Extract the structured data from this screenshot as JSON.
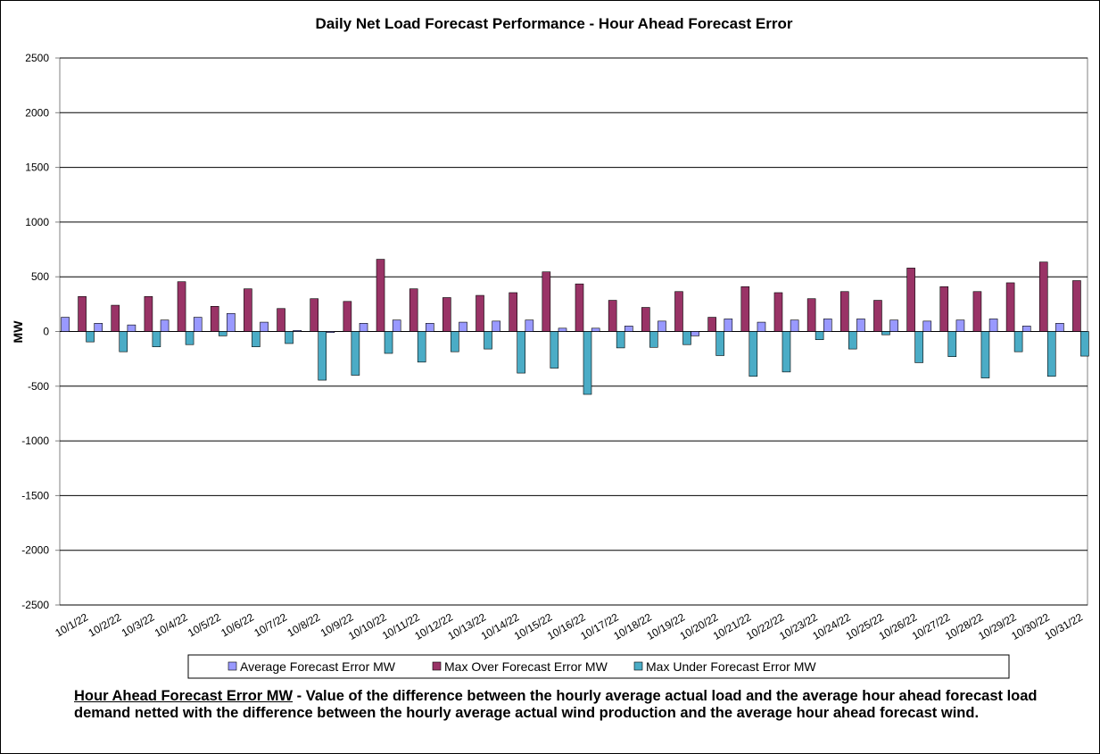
{
  "chart_data": {
    "type": "bar",
    "title": "Daily Net Load Forecast Performance - Hour Ahead Forecast Error",
    "ylabel": "MW",
    "categories": [
      "10/1/22",
      "10/2/22",
      "10/3/22",
      "10/4/22",
      "10/5/22",
      "10/6/22",
      "10/7/22",
      "10/8/22",
      "10/9/22",
      "10/10/22",
      "10/11/22",
      "10/12/22",
      "10/13/22",
      "10/14/22",
      "10/15/22",
      "10/16/22",
      "10/17/22",
      "10/18/22",
      "10/19/22",
      "10/20/22",
      "10/21/22",
      "10/22/22",
      "10/23/22",
      "10/24/22",
      "10/25/22",
      "10/26/22",
      "10/27/22",
      "10/28/22",
      "10/29/22",
      "10/30/22",
      "10/31/22"
    ],
    "series": [
      {
        "name": "Average Forecast Error MW",
        "color": "#9999ff",
        "values": [
          130,
          75,
          60,
          105,
          130,
          165,
          85,
          10,
          -10,
          75,
          105,
          75,
          85,
          95,
          105,
          30,
          30,
          50,
          95,
          -40,
          115,
          85,
          105,
          115,
          115,
          105,
          95,
          105,
          115,
          50,
          75
        ]
      },
      {
        "name": "Max Over Forecast Error MW",
        "color": "#993366",
        "values": [
          320,
          240,
          320,
          455,
          230,
          390,
          210,
          300,
          275,
          660,
          390,
          310,
          330,
          355,
          545,
          435,
          285,
          220,
          365,
          130,
          410,
          355,
          300,
          365,
          285,
          580,
          410,
          365,
          445,
          635,
          465
        ]
      },
      {
        "name": "Max Under Forecast Error MW",
        "color": "#4bacc6",
        "values": [
          -95,
          -185,
          -140,
          -120,
          -40,
          -140,
          -110,
          -445,
          -400,
          -200,
          -280,
          -185,
          -160,
          -380,
          -335,
          -575,
          -150,
          -145,
          -120,
          -220,
          -410,
          -370,
          -75,
          -160,
          -30,
          -285,
          -230,
          -425,
          -185,
          -410,
          -225
        ]
      }
    ],
    "ylim": [
      -2500,
      2500
    ],
    "yticks": [
      -2500,
      -2000,
      -1500,
      -1000,
      -500,
      0,
      500,
      1000,
      1500,
      2000,
      2500
    ],
    "grid": true,
    "note": {
      "heading": "Hour Ahead Forecast Error MW",
      "text": " - Value of the difference between the hourly average actual load and the average hour ahead forecast load demand netted with the difference between the hourly average actual wind production and the average hour ahead forecast wind."
    }
  }
}
